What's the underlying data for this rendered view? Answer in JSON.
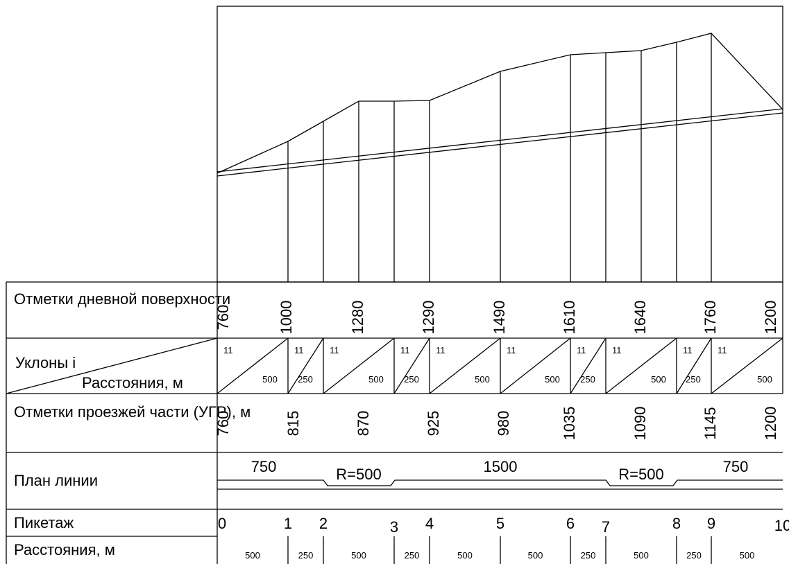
{
  "rows": {
    "surface": "Отметки дневной поверхности",
    "slopes_top": "Уклоны і",
    "slopes_bottom": "Расстояния, м",
    "road": "Отметки проезжей части (УГР), м",
    "plan": "План линии",
    "picket": "Пикетаж",
    "distance": "Расстояния, м"
  },
  "surface_marks": [
    "760",
    "1000",
    "1280",
    "1290",
    "1490",
    "1610",
    "1640",
    "1760",
    "1200"
  ],
  "road_marks": [
    "760",
    "815",
    "870",
    "925",
    "980",
    "1035",
    "1090",
    "1145",
    "1200"
  ],
  "slopes": [
    {
      "i": "11",
      "d": "500"
    },
    {
      "i": "11",
      "d": "250"
    },
    {
      "i": "11",
      "d": "500"
    },
    {
      "i": "11",
      "d": "250"
    },
    {
      "i": "11",
      "d": "500"
    },
    {
      "i": "11",
      "d": "500"
    },
    {
      "i": "11",
      "d": "250"
    },
    {
      "i": "11",
      "d": "500"
    },
    {
      "i": "11",
      "d": "250"
    },
    {
      "i": "11",
      "d": "500"
    }
  ],
  "plan_labels": [
    "750",
    "R=500",
    "1500",
    "R=500",
    "750"
  ],
  "pickets": [
    "0",
    "1",
    "2",
    "3",
    "4",
    "5",
    "6",
    "7",
    "8",
    "9",
    "10"
  ],
  "distances": [
    "500",
    "250",
    "500",
    "250",
    "500",
    "500",
    "250",
    "500",
    "250",
    "500"
  ]
}
